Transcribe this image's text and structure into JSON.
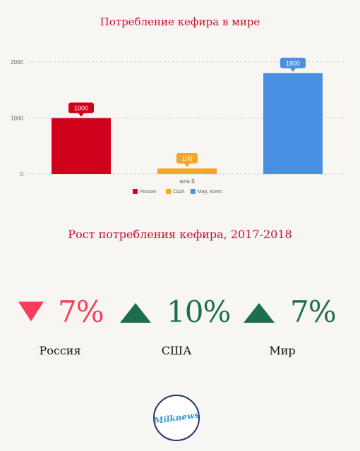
{
  "chart_title": "Потребление кефира в мире",
  "chart_data": {
    "type": "bar",
    "categories": [
      "Россия",
      "США",
      "Мир, всего"
    ],
    "values": [
      1000,
      100,
      1800
    ],
    "colors": [
      "#d0021b",
      "#f5a623",
      "#4a90e2"
    ],
    "xlabel": "млн $",
    "ylabel": "",
    "ylim": [
      0,
      2000
    ],
    "yticks": [
      0,
      1000,
      2000
    ],
    "grid": true,
    "legend": "bottom"
  },
  "growth_title": "Рост потребления кефира, 2017-2018",
  "growth": [
    {
      "name": "Россия",
      "value": "7%",
      "direction": "down",
      "color": "#fa3c5a"
    },
    {
      "name": "США",
      "value": "10%",
      "direction": "up",
      "color": "#1d6e4e"
    },
    {
      "name": "Мир",
      "value": "7%",
      "direction": "up",
      "color": "#1d6e4e"
    }
  ],
  "logo_text": "Milknews"
}
